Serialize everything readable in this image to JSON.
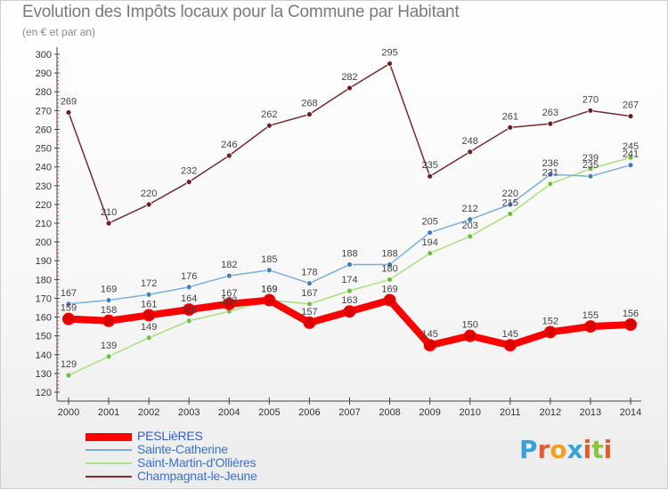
{
  "header": {
    "title": "Evolution des Impôts locaux pour la Commune par Habitant",
    "subtitle": "(en € et par an)"
  },
  "brand": {
    "text": "Proxiti",
    "letters": [
      {
        "ch": "P",
        "color": "#3aa0d8"
      },
      {
        "ch": "r",
        "color": "#e85b2a"
      },
      {
        "ch": "o",
        "color": "#f0a020"
      },
      {
        "ch": "x",
        "color": "#3aa0d8"
      },
      {
        "ch": "i",
        "color": "#e85b2a"
      },
      {
        "ch": "t",
        "color": "#8cc63e"
      },
      {
        "ch": "i",
        "color": "#e85b2a"
      }
    ]
  },
  "chart_data": {
    "type": "line",
    "title": "Evolution des Impôts locaux pour la Commune par Habitant",
    "subtitle": "(en € et par an)",
    "xlabel": "",
    "ylabel": "",
    "x": [
      2000,
      2001,
      2002,
      2003,
      2004,
      2005,
      2006,
      2007,
      2008,
      2009,
      2010,
      2011,
      2012,
      2013,
      2014
    ],
    "ylim": [
      120,
      300
    ],
    "yticks": [
      120,
      130,
      140,
      150,
      160,
      170,
      180,
      190,
      200,
      210,
      220,
      230,
      240,
      250,
      260,
      270,
      280,
      290,
      300
    ],
    "grid": false,
    "legend_position": "bottom-left",
    "series": [
      {
        "name": "PESLièRES",
        "color": "#ff0000",
        "marker": "#dd0000",
        "label_color": "#444444",
        "emphasis": true,
        "values": [
          159,
          158,
          161,
          164,
          167,
          169,
          157,
          163,
          169,
          145,
          150,
          145,
          152,
          155,
          156
        ]
      },
      {
        "name": "Sainte-Catherine",
        "color": "#7aaede",
        "marker": "#3f7fc2",
        "label_color": "#444444",
        "emphasis": false,
        "values": [
          167,
          169,
          172,
          176,
          182,
          185,
          178,
          188,
          188,
          205,
          212,
          220,
          236,
          235,
          241
        ]
      },
      {
        "name": "Saint-Martin-d'Ollières",
        "color": "#a8e07a",
        "marker": "#6cc03a",
        "label_color": "#444444",
        "emphasis": false,
        "values": [
          129,
          139,
          149,
          158,
          163,
          169,
          167,
          174,
          180,
          194,
          203,
          215,
          231,
          239,
          245
        ]
      },
      {
        "name": "Champagnat-le-Jeune",
        "color": "#7a2a2a",
        "marker": "#6e1f1f",
        "label_color": "#444444",
        "emphasis": false,
        "values": [
          269,
          210,
          220,
          232,
          246,
          262,
          268,
          282,
          295,
          235,
          248,
          261,
          263,
          270,
          267
        ]
      }
    ]
  }
}
